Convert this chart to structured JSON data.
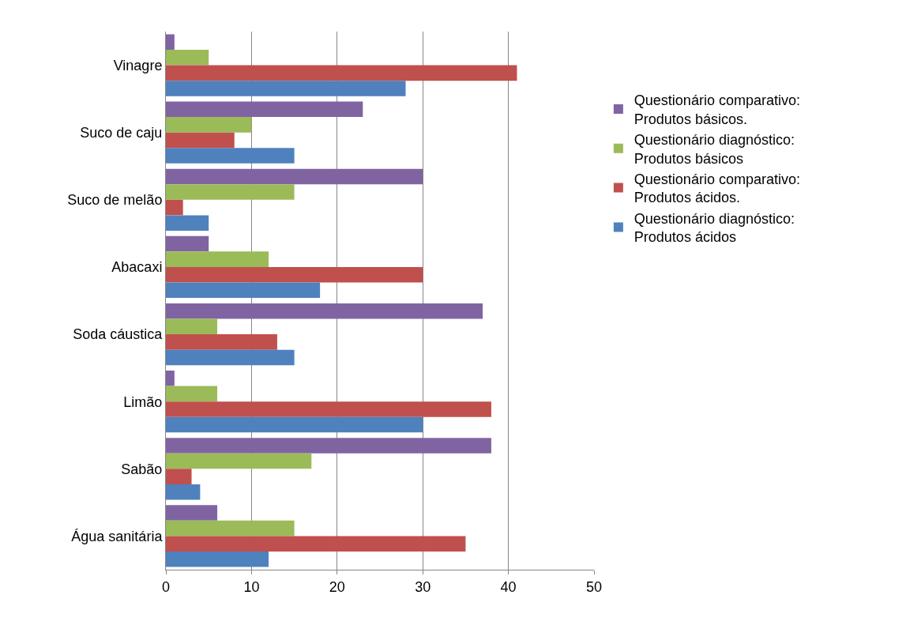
{
  "chart_data": {
    "type": "bar",
    "orientation": "horizontal",
    "categories": [
      "Vinagre",
      "Suco de caju",
      "Suco de melão",
      "Abacaxi",
      "Soda cáustica",
      "Limão",
      "Sabão",
      "Água sanitária"
    ],
    "series": [
      {
        "name": "Questionário comparativo: Produtos básicos.",
        "color": "#8064a2",
        "values": [
          1,
          23,
          30,
          5,
          37,
          1,
          38,
          6
        ]
      },
      {
        "name": "Questionário diagnóstico: Produtos básicos",
        "color": "#9bbb59",
        "values": [
          5,
          10,
          15,
          12,
          6,
          6,
          17,
          15
        ]
      },
      {
        "name": "Questionário comparativo: Produtos ácidos.",
        "color": "#c0504d",
        "values": [
          41,
          8,
          2,
          30,
          13,
          38,
          3,
          35
        ]
      },
      {
        "name": "Questionário diagnóstico: Produtos ácidos",
        "color": "#4f81bd",
        "values": [
          28,
          15,
          5,
          18,
          15,
          30,
          4,
          12
        ]
      }
    ],
    "xlim": [
      0,
      50
    ],
    "xticks": [
      0,
      10,
      20,
      30,
      40,
      50
    ],
    "grid": "x",
    "legend": "right"
  }
}
